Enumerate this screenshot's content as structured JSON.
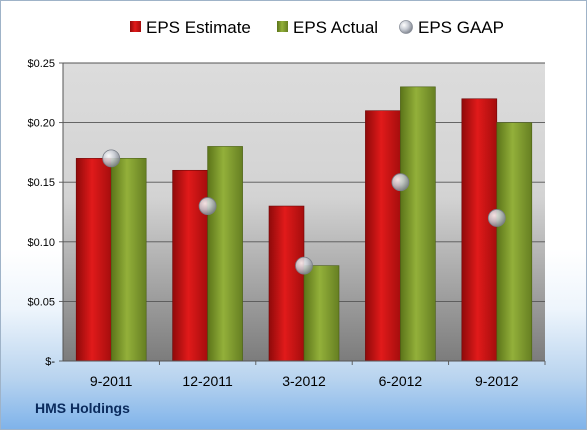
{
  "company": "HMS Holdings",
  "colors": {
    "estimate": "#cc1111",
    "actual": "#7f9a2c",
    "gaap": "#b8bcc6"
  },
  "chart_data": {
    "type": "bar",
    "categories": [
      "9-2011",
      "12-2011",
      "3-2012",
      "6-2012",
      "9-2012"
    ],
    "series": [
      {
        "name": "EPS Estimate",
        "type": "bar",
        "values": [
          0.17,
          0.16,
          0.13,
          0.21,
          0.22
        ]
      },
      {
        "name": "EPS Actual",
        "type": "bar",
        "values": [
          0.17,
          0.18,
          0.08,
          0.23,
          0.2
        ]
      },
      {
        "name": "EPS GAAP",
        "type": "scatter",
        "values": [
          0.17,
          0.13,
          0.08,
          0.15,
          0.12
        ]
      }
    ],
    "ylim": [
      0,
      0.25
    ],
    "yticks": [
      0,
      0.05,
      0.1,
      0.15,
      0.2,
      0.25
    ],
    "ytick_labels": [
      "$-",
      "$0.05",
      "$0.10",
      "$0.15",
      "$0.20",
      "$0.25"
    ],
    "grid": true,
    "legend_position": "top"
  }
}
